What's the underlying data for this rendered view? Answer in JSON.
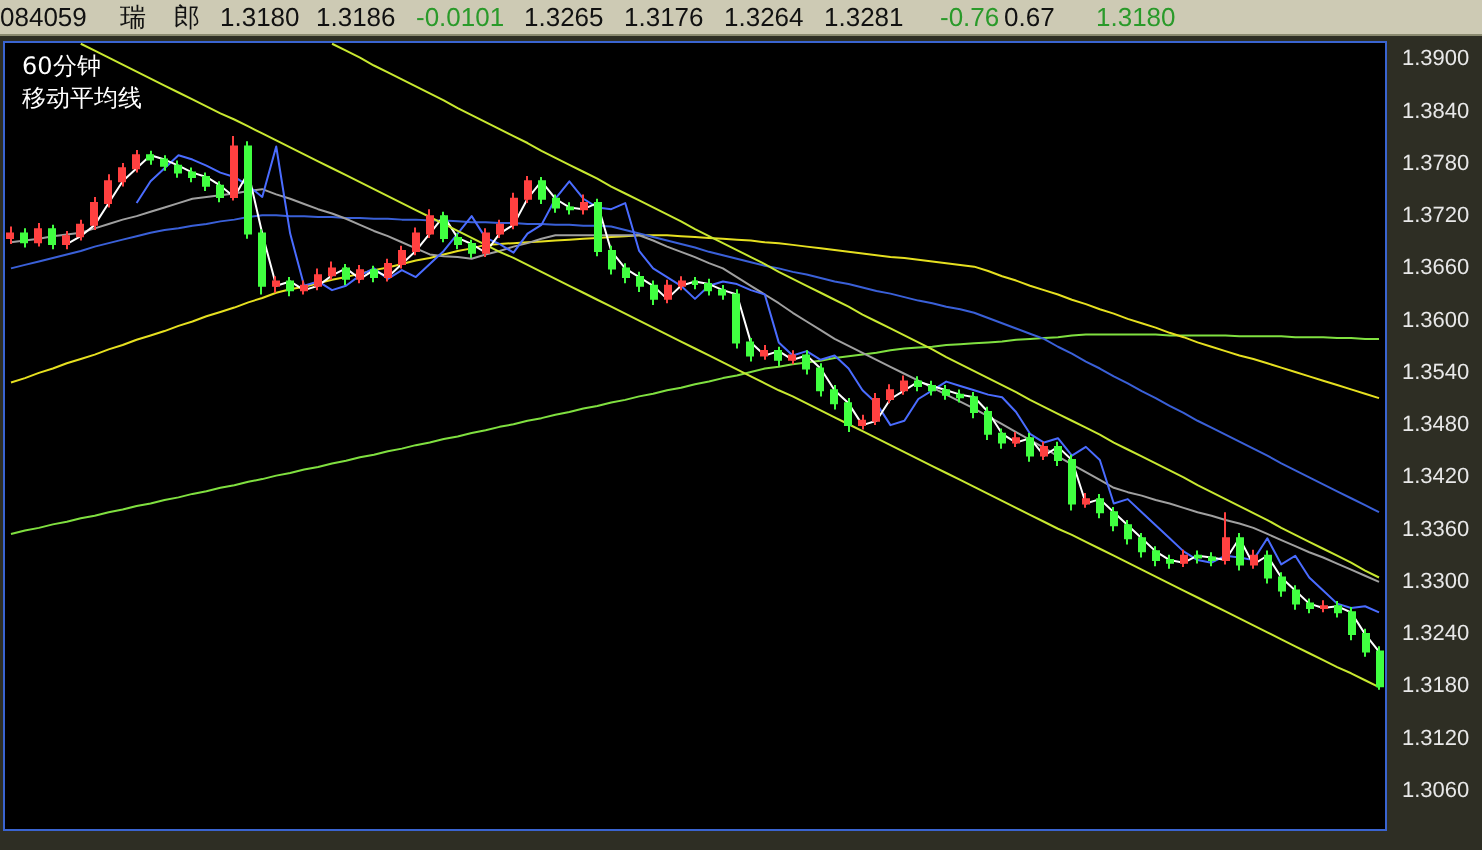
{
  "chart_data": {
    "type": "candlestick",
    "title": "60分钟",
    "subtitle": "移动平均线",
    "annotations": [
      "084059",
      "瑞",
      "郎",
      "1.3180",
      "1.3186",
      "-0.0101",
      "1.3265",
      "1.3176",
      "1.3264",
      "1.3281",
      "-0.76",
      "0.67",
      "1.3180"
    ],
    "categories": [
      null,
      null,
      null,
      null,
      null,
      null,
      null,
      null,
      null,
      null,
      null,
      null,
      null,
      null,
      null,
      null,
      null,
      null,
      null,
      null,
      null,
      null,
      null,
      null,
      null,
      null,
      null,
      null,
      null,
      null,
      null,
      null,
      null,
      null,
      null,
      null,
      null,
      null,
      null,
      null,
      null,
      null,
      null,
      null,
      null,
      null,
      null,
      null,
      null,
      null,
      null,
      null,
      null,
      null,
      null,
      null,
      null,
      null,
      null,
      null,
      null,
      null,
      null,
      null,
      null,
      null,
      null,
      null,
      null,
      null,
      null,
      null,
      null,
      null,
      null,
      null,
      null,
      null,
      null,
      null,
      null,
      null,
      null,
      null,
      null,
      null,
      null,
      null,
      null,
      null,
      null,
      null,
      null,
      null,
      null,
      null,
      null,
      null,
      null
    ],
    "ohlc": [
      [
        1.3695,
        1.3708,
        1.3688,
        1.37
      ],
      [
        1.37,
        1.3706,
        1.3684,
        1.369
      ],
      [
        1.369,
        1.3712,
        1.3685,
        1.3705
      ],
      [
        1.3705,
        1.371,
        1.3682,
        1.3688
      ],
      [
        1.3688,
        1.3703,
        1.3682,
        1.3697
      ],
      [
        1.3697,
        1.3716,
        1.3692,
        1.371
      ],
      [
        1.371,
        1.3742,
        1.3704,
        1.3735
      ],
      [
        1.3735,
        1.3768,
        1.373,
        1.376
      ],
      [
        1.376,
        1.3781,
        1.3754,
        1.3775
      ],
      [
        1.3775,
        1.3796,
        1.377,
        1.379
      ],
      [
        1.379,
        1.3795,
        1.3779,
        1.3785
      ],
      [
        1.3785,
        1.379,
        1.3772,
        1.3778
      ],
      [
        1.3778,
        1.3784,
        1.3764,
        1.377
      ],
      [
        1.377,
        1.3776,
        1.3759,
        1.3765
      ],
      [
        1.3765,
        1.377,
        1.3749,
        1.3755
      ],
      [
        1.3755,
        1.376,
        1.3736,
        1.3742
      ],
      [
        1.3742,
        1.3812,
        1.3738,
        1.38
      ],
      [
        1.38,
        1.3806,
        1.3694,
        1.37
      ],
      [
        1.37,
        1.3705,
        1.363,
        1.364
      ],
      [
        1.364,
        1.3651,
        1.3632,
        1.3645
      ],
      [
        1.3645,
        1.365,
        1.3628,
        1.3635
      ],
      [
        1.3635,
        1.3646,
        1.363,
        1.364
      ],
      [
        1.364,
        1.366,
        1.3635,
        1.3652
      ],
      [
        1.3652,
        1.3668,
        1.3647,
        1.366
      ],
      [
        1.366,
        1.3665,
        1.3641,
        1.3648
      ],
      [
        1.3648,
        1.3664,
        1.3643,
        1.3658
      ],
      [
        1.3658,
        1.3663,
        1.3644,
        1.365
      ],
      [
        1.365,
        1.3671,
        1.3645,
        1.3665
      ],
      [
        1.3665,
        1.3686,
        1.366,
        1.368
      ],
      [
        1.368,
        1.3707,
        1.3675,
        1.37
      ],
      [
        1.37,
        1.3728,
        1.3695,
        1.372
      ],
      [
        1.372,
        1.3725,
        1.369,
        1.3695
      ],
      [
        1.3695,
        1.37,
        1.3682,
        1.3688
      ],
      [
        1.3688,
        1.3693,
        1.3672,
        1.3678
      ],
      [
        1.3678,
        1.3706,
        1.3673,
        1.37
      ],
      [
        1.37,
        1.3716,
        1.3695,
        1.371
      ],
      [
        1.371,
        1.3747,
        1.3705,
        1.374
      ],
      [
        1.374,
        1.3766,
        1.3735,
        1.376
      ],
      [
        1.376,
        1.3765,
        1.3734,
        1.374
      ],
      [
        1.374,
        1.3745,
        1.3724,
        1.373
      ],
      [
        1.373,
        1.3736,
        1.3722,
        1.3728
      ],
      [
        1.3728,
        1.3745,
        1.3722,
        1.3735
      ],
      [
        1.3735,
        1.374,
        1.3674,
        1.368
      ],
      [
        1.368,
        1.3686,
        1.3653,
        1.366
      ],
      [
        1.366,
        1.3666,
        1.3643,
        1.365
      ],
      [
        1.365,
        1.3656,
        1.3633,
        1.364
      ],
      [
        1.364,
        1.3646,
        1.3618,
        1.3625
      ],
      [
        1.3625,
        1.3647,
        1.362,
        1.364
      ],
      [
        1.364,
        1.3651,
        1.3635,
        1.3645
      ],
      [
        1.3645,
        1.365,
        1.3636,
        1.3642
      ],
      [
        1.3642,
        1.3648,
        1.3629,
        1.3635
      ],
      [
        1.3635,
        1.3641,
        1.3624,
        1.363
      ],
      [
        1.363,
        1.3636,
        1.3568,
        1.3575
      ],
      [
        1.3575,
        1.358,
        1.3553,
        1.356
      ],
      [
        1.356,
        1.3572,
        1.3555,
        1.3565
      ],
      [
        1.3565,
        1.357,
        1.3548,
        1.3555
      ],
      [
        1.3555,
        1.3566,
        1.355,
        1.356
      ],
      [
        1.356,
        1.3566,
        1.3538,
        1.3545
      ],
      [
        1.3545,
        1.3551,
        1.3513,
        1.352
      ],
      [
        1.352,
        1.3526,
        1.3498,
        1.3505
      ],
      [
        1.3505,
        1.3511,
        1.3472,
        1.348
      ],
      [
        1.348,
        1.3492,
        1.3475,
        1.3485
      ],
      [
        1.3485,
        1.3517,
        1.348,
        1.351
      ],
      [
        1.351,
        1.3527,
        1.3505,
        1.352
      ],
      [
        1.352,
        1.3537,
        1.3515,
        1.353
      ],
      [
        1.353,
        1.3536,
        1.3519,
        1.3525
      ],
      [
        1.3525,
        1.3531,
        1.3514,
        1.352
      ],
      [
        1.352,
        1.3526,
        1.3509,
        1.3515
      ],
      [
        1.3515,
        1.3521,
        1.3506,
        1.3512
      ],
      [
        1.3512,
        1.3518,
        1.3488,
        1.3495
      ],
      [
        1.3495,
        1.3501,
        1.3463,
        1.347
      ],
      [
        1.347,
        1.3476,
        1.3453,
        1.346
      ],
      [
        1.346,
        1.3472,
        1.3455,
        1.3465
      ],
      [
        1.3465,
        1.3471,
        1.3438,
        1.3445
      ],
      [
        1.3445,
        1.3461,
        1.344,
        1.3455
      ],
      [
        1.3455,
        1.3461,
        1.3433,
        1.344
      ],
      [
        1.344,
        1.3446,
        1.3382,
        1.339
      ],
      [
        1.339,
        1.3402,
        1.3385,
        1.3395
      ],
      [
        1.3395,
        1.3401,
        1.3373,
        1.338
      ],
      [
        1.338,
        1.3386,
        1.3358,
        1.3365
      ],
      [
        1.3365,
        1.3371,
        1.3343,
        1.335
      ],
      [
        1.335,
        1.3356,
        1.3328,
        1.3335
      ],
      [
        1.3335,
        1.3341,
        1.3318,
        1.3325
      ],
      [
        1.3325,
        1.3331,
        1.3315,
        1.3322
      ],
      [
        1.3322,
        1.3337,
        1.3317,
        1.333
      ],
      [
        1.333,
        1.3336,
        1.3321,
        1.3328
      ],
      [
        1.3328,
        1.3334,
        1.3318,
        1.3325
      ],
      [
        1.3325,
        1.338,
        1.332,
        1.335
      ],
      [
        1.335,
        1.3356,
        1.3313,
        1.332
      ],
      [
        1.332,
        1.3337,
        1.3315,
        1.333
      ],
      [
        1.333,
        1.3336,
        1.3298,
        1.3305
      ],
      [
        1.3305,
        1.3311,
        1.3283,
        1.329
      ],
      [
        1.329,
        1.3296,
        1.3268,
        1.3275
      ],
      [
        1.3275,
        1.3281,
        1.3264,
        1.327
      ],
      [
        1.327,
        1.3279,
        1.3265,
        1.3272
      ],
      [
        1.3272,
        1.3278,
        1.3259,
        1.3265
      ],
      [
        1.3265,
        1.3271,
        1.3233,
        1.324
      ],
      [
        1.324,
        1.3246,
        1.3214,
        1.322
      ],
      [
        1.322,
        1.3226,
        1.3176,
        1.318
      ]
    ],
    "colors": [
      "#ff4040",
      "#40ff40",
      "#ff4040",
      "#40ff40",
      "#ff4040",
      "#ff4040",
      "#ff4040",
      "#ff4040",
      "#ff4040",
      "#ff4040",
      "#40ff40",
      "#40ff40",
      "#40ff40",
      "#40ff40",
      "#40ff40",
      "#40ff40",
      "#ff4040",
      "#40ff40",
      "#40ff40",
      "#ff4040",
      "#40ff40",
      "#ff4040",
      "#ff4040",
      "#ff4040",
      "#40ff40",
      "#ff4040",
      "#40ff40",
      "#ff4040",
      "#ff4040",
      "#ff4040",
      "#ff4040",
      "#40ff40",
      "#40ff40",
      "#40ff40",
      "#ff4040",
      "#ff4040",
      "#ff4040",
      "#ff4040",
      "#40ff40",
      "#40ff40",
      "#40ff40",
      "#ff4040",
      "#40ff40",
      "#40ff40",
      "#40ff40",
      "#40ff40",
      "#40ff40",
      "#ff4040",
      "#ff4040",
      "#40ff40",
      "#40ff40",
      "#40ff40",
      "#40ff40",
      "#40ff40",
      "#ff4040",
      "#40ff40",
      "#ff4040",
      "#40ff40",
      "#40ff40",
      "#40ff40",
      "#40ff40",
      "#ff4040",
      "#ff4040",
      "#ff4040",
      "#ff4040",
      "#40ff40",
      "#40ff40",
      "#40ff40",
      "#40ff40",
      "#40ff40",
      "#40ff40",
      "#40ff40",
      "#ff4040",
      "#40ff40",
      "#ff4040",
      "#40ff40",
      "#40ff40",
      "#ff4040",
      "#40ff40",
      "#40ff40",
      "#40ff40",
      "#40ff40",
      "#40ff40",
      "#40ff40",
      "#ff4040",
      "#40ff40",
      "#40ff40",
      "#ff4040",
      "#40ff40",
      "#ff4040",
      "#40ff40",
      "#40ff40",
      "#40ff40",
      "#40ff40",
      "#ff4040",
      "#40ff40",
      "#40ff40",
      "#40ff40",
      "#40ff40"
    ],
    "series": [
      {
        "type": "line",
        "color": "#80e040",
        "values": [
          1.3355,
          1.3359,
          1.3362,
          1.3366,
          1.3369,
          1.3373,
          1.3376,
          1.338,
          1.3383,
          1.3387,
          1.339,
          1.3394,
          1.3397,
          1.3401,
          1.3404,
          1.3408,
          1.3411,
          1.3415,
          1.3418,
          1.3422,
          1.3425,
          1.3429,
          1.3432,
          1.3436,
          1.3439,
          1.3443,
          1.3446,
          1.345,
          1.3453,
          1.3457,
          1.346,
          1.3464,
          1.3467,
          1.3471,
          1.3474,
          1.3478,
          1.3481,
          1.3485,
          1.3488,
          1.3492,
          1.3495,
          1.3499,
          1.3502,
          1.3506,
          1.3509,
          1.3513,
          1.3516,
          1.352,
          1.3523,
          1.3527,
          1.353,
          1.3534,
          1.3537,
          1.3541,
          1.3545,
          1.3547,
          1.355,
          1.3552,
          1.3554,
          1.3557,
          1.3559,
          1.3561,
          1.3563,
          1.3566,
          1.3568,
          1.3569,
          1.357,
          1.3572,
          1.3573,
          1.3574,
          1.3575,
          1.3576,
          1.3578,
          1.3579,
          1.358,
          1.3581,
          1.3583,
          1.3584,
          1.3584,
          1.3584,
          1.3584,
          1.3584,
          1.3584,
          1.3583,
          1.3583,
          1.3583,
          1.3583,
          1.3583,
          1.3582,
          1.3582,
          1.3582,
          1.3582,
          1.3581,
          1.3581,
          1.3581,
          1.358,
          1.358,
          1.3579,
          1.3579
        ]
      },
      {
        "type": "line",
        "color": "#e6e020",
        "values": [
          1.3529,
          1.3534,
          1.354,
          1.3545,
          1.3551,
          1.3556,
          1.3561,
          1.3567,
          1.3572,
          1.3578,
          1.3583,
          1.3588,
          1.3594,
          1.3599,
          1.3605,
          1.361,
          1.3615,
          1.3621,
          1.3626,
          1.3632,
          1.3636,
          1.3639,
          1.3643,
          1.3647,
          1.365,
          1.3654,
          1.3658,
          1.3661,
          1.3665,
          1.3669,
          1.3672,
          1.3676,
          1.368,
          1.3683,
          1.3687,
          1.3688,
          1.3689,
          1.369,
          1.3691,
          1.3692,
          1.3693,
          1.3694,
          1.3695,
          1.3696,
          1.3697,
          1.3698,
          1.3698,
          1.3698,
          1.3697,
          1.3696,
          1.3695,
          1.3694,
          1.3693,
          1.3692,
          1.369,
          1.3689,
          1.3687,
          1.3685,
          1.3683,
          1.3681,
          1.3679,
          1.3677,
          1.3675,
          1.3673,
          1.3672,
          1.367,
          1.3668,
          1.3666,
          1.3664,
          1.3662,
          1.3657,
          1.3651,
          1.3646,
          1.364,
          1.3635,
          1.363,
          1.3624,
          1.3619,
          1.3613,
          1.3608,
          1.3602,
          1.3597,
          1.3592,
          1.3586,
          1.3581,
          1.3575,
          1.357,
          1.3565,
          1.356,
          1.3556,
          1.3551,
          1.3546,
          1.3541,
          1.3536,
          1.3531,
          1.3526,
          1.3521,
          1.3516,
          1.3511
        ]
      },
      {
        "type": "line",
        "color": "#3a60d8",
        "values": [
          1.366,
          1.3664,
          1.3668,
          1.3672,
          1.3676,
          1.368,
          1.3685,
          1.3689,
          1.3693,
          1.3697,
          1.3701,
          1.3704,
          1.3706,
          1.3709,
          1.3711,
          1.3714,
          1.3716,
          1.3719,
          1.3721,
          1.3721,
          1.372,
          1.372,
          1.3719,
          1.3719,
          1.3718,
          1.3718,
          1.3717,
          1.3717,
          1.3716,
          1.3716,
          1.3715,
          1.3715,
          1.3714,
          1.3713,
          1.3713,
          1.3712,
          1.3712,
          1.3711,
          1.3711,
          1.371,
          1.371,
          1.3709,
          1.3709,
          1.3708,
          1.3704,
          1.37,
          1.3696,
          1.3692,
          1.3688,
          1.3684,
          1.3679,
          1.3675,
          1.3671,
          1.3667,
          1.3663,
          1.366,
          1.3656,
          1.3653,
          1.3649,
          1.3645,
          1.3642,
          1.3638,
          1.3634,
          1.3631,
          1.3627,
          1.3623,
          1.362,
          1.3616,
          1.3613,
          1.3609,
          1.3603,
          1.3597,
          1.3591,
          1.3585,
          1.3579,
          1.357,
          1.3562,
          1.3553,
          1.3545,
          1.3536,
          1.3528,
          1.3519,
          1.3511,
          1.3502,
          1.3494,
          1.3485,
          1.3477,
          1.3469,
          1.3461,
          1.3453,
          1.3445,
          1.3436,
          1.3428,
          1.342,
          1.3412,
          1.3404,
          1.3396,
          1.3388,
          1.338
        ]
      },
      {
        "type": "line",
        "color": "#a0a0a0",
        "values": [
          1.369,
          1.3692,
          1.3694,
          1.3697,
          1.3699,
          1.3701,
          1.3706,
          1.3711,
          1.3716,
          1.372,
          1.3725,
          1.373,
          1.3735,
          1.374,
          1.3742,
          1.3744,
          1.3746,
          1.3749,
          1.3751,
          1.3745,
          1.374,
          1.3734,
          1.3728,
          1.3723,
          1.3717,
          1.371,
          1.3703,
          1.3697,
          1.369,
          1.3683,
          1.3676,
          1.3674,
          1.3673,
          1.3671,
          1.3676,
          1.368,
          1.3685,
          1.3689,
          1.3694,
          1.3698,
          1.3698,
          1.3698,
          1.3698,
          1.3698,
          1.3698,
          1.3698,
          1.3692,
          1.3685,
          1.3679,
          1.3673,
          1.3666,
          1.366,
          1.365,
          1.364,
          1.363,
          1.362,
          1.3609,
          1.3599,
          1.3589,
          1.3579,
          1.3571,
          1.3563,
          1.3555,
          1.3547,
          1.3539,
          1.3531,
          1.3523,
          1.3515,
          1.3507,
          1.3499,
          1.349,
          1.3481,
          1.3472,
          1.3463,
          1.3454,
          1.3444,
          1.3435,
          1.3426,
          1.3417,
          1.3408,
          1.3403,
          1.3399,
          1.3394,
          1.339,
          1.3385,
          1.338,
          1.3376,
          1.3371,
          1.3367,
          1.3362,
          1.3355,
          1.3348,
          1.3341,
          1.3334,
          1.3328,
          1.3321,
          1.3314,
          1.3307,
          1.33
        ]
      },
      {
        "type": "line",
        "color": "#4a6cff",
        "values": [
          null,
          null,
          null,
          null,
          null,
          null,
          null,
          null,
          null,
          1.3735,
          1.376,
          1.3775,
          1.379,
          1.3785,
          1.3778,
          1.377,
          1.3765,
          1.3755,
          1.3742,
          1.38,
          1.37,
          1.364,
          1.3645,
          1.3635,
          1.364,
          1.3652,
          1.366,
          1.3648,
          1.3658,
          1.365,
          1.3665,
          1.368,
          1.37,
          1.372,
          1.3695,
          1.3688,
          1.3678,
          1.37,
          1.371,
          1.374,
          1.376,
          1.374,
          1.373,
          1.3728,
          1.3735,
          1.368,
          1.366,
          1.365,
          1.364,
          1.3625,
          1.364,
          1.3645,
          1.3642,
          1.3635,
          1.363,
          1.3575,
          1.356,
          1.3565,
          1.3555,
          1.356,
          1.3545,
          1.352,
          1.3505,
          1.348,
          1.3485,
          1.351,
          1.352,
          1.353,
          1.3525,
          1.352,
          1.3515,
          1.3512,
          1.3495,
          1.347,
          1.346,
          1.3465,
          1.3445,
          1.3455,
          1.344,
          1.339,
          1.3395,
          1.338,
          1.3365,
          1.335,
          1.3335,
          1.3325,
          1.3322,
          1.333,
          1.3328,
          1.3325,
          1.335,
          1.332,
          1.333,
          1.3305,
          1.329,
          1.3275,
          1.327,
          1.3272,
          1.3265
        ]
      },
      {
        "type": "line",
        "color": "#ffffff",
        "values": [
          null,
          null,
          null,
          null,
          1.3688,
          1.3697,
          1.371,
          1.3735,
          1.376,
          1.3775,
          1.379,
          1.3785,
          1.3778,
          1.377,
          1.3765,
          1.3755,
          1.3742,
          1.377,
          1.37,
          1.364,
          1.3645,
          1.3635,
          1.364,
          1.3652,
          1.366,
          1.3648,
          1.3658,
          1.365,
          1.3665,
          1.368,
          1.37,
          1.372,
          1.3695,
          1.3688,
          1.3678,
          1.37,
          1.371,
          1.374,
          1.376,
          1.374,
          1.373,
          1.3728,
          1.3735,
          1.368,
          1.366,
          1.365,
          1.364,
          1.3625,
          1.364,
          1.3645,
          1.3642,
          1.3635,
          1.363,
          1.3575,
          1.356,
          1.3565,
          1.3555,
          1.356,
          1.3545,
          1.352,
          1.3505,
          1.348,
          1.3485,
          1.351,
          1.352,
          1.353,
          1.3525,
          1.352,
          1.3515,
          1.3512,
          1.3495,
          1.347,
          1.346,
          1.3465,
          1.3445,
          1.3455,
          1.344,
          1.339,
          1.3395,
          1.338,
          1.3365,
          1.335,
          1.3335,
          1.3325,
          1.3322,
          1.333,
          1.3328,
          1.3325,
          1.335,
          1.332,
          1.333,
          1.3305,
          1.329,
          1.3275,
          1.327,
          1.3272,
          1.3265,
          1.324,
          1.322
        ]
      },
      {
        "type": "line",
        "color": "#c8e830",
        "values": [
          null,
          null,
          null,
          null,
          null,
          1.3918,
          1.391,
          1.3902,
          1.3894,
          1.3886,
          1.3878,
          1.387,
          1.3862,
          1.3854,
          1.3846,
          1.3838,
          1.3831,
          1.3823,
          1.3815,
          1.3807,
          1.3799,
          1.3791,
          1.3783,
          1.3775,
          1.3767,
          1.3759,
          1.3751,
          1.3743,
          1.3735,
          1.3727,
          1.3719,
          1.3711,
          1.3703,
          1.3695,
          1.3687,
          1.3679,
          1.3672,
          1.3664,
          1.3656,
          1.3648,
          1.364,
          1.3632,
          1.3624,
          1.3616,
          1.3608,
          1.36,
          1.3592,
          1.3584,
          1.3576,
          1.3568,
          1.356,
          1.3552,
          1.3544,
          1.3536,
          1.3528,
          1.352,
          1.3513,
          1.3505,
          1.3497,
          1.3489,
          1.3481,
          1.3473,
          1.3465,
          1.3457,
          1.3449,
          1.3441,
          1.3433,
          1.3425,
          1.3417,
          1.3409,
          1.3401,
          1.3393,
          1.3385,
          1.3377,
          1.3369,
          1.3361,
          1.3354,
          1.3346,
          1.3338,
          1.333,
          1.3322,
          1.3314,
          1.3306,
          1.3298,
          1.329,
          1.3282,
          1.3274,
          1.3266,
          1.3258,
          1.325,
          1.3242,
          1.3234,
          1.3226,
          1.3218,
          1.321,
          1.3202,
          1.3195,
          1.3187,
          1.3179
        ]
      },
      {
        "type": "line",
        "color": "#c8e830",
        "values": [
          null,
          null,
          null,
          null,
          null,
          null,
          null,
          null,
          null,
          null,
          null,
          null,
          null,
          null,
          null,
          null,
          null,
          null,
          null,
          null,
          null,
          null,
          null,
          1.3918,
          1.391,
          1.3902,
          1.3893,
          1.3885,
          1.3877,
          1.3869,
          1.3861,
          1.3853,
          1.3844,
          1.3836,
          1.3828,
          1.382,
          1.3812,
          1.3804,
          1.3795,
          1.3787,
          1.3779,
          1.3771,
          1.3763,
          1.3754,
          1.3746,
          1.3738,
          1.373,
          1.3722,
          1.3714,
          1.3705,
          1.3697,
          1.3689,
          1.3681,
          1.3673,
          1.3665,
          1.3656,
          1.3648,
          1.364,
          1.3632,
          1.3624,
          1.3616,
          1.3607,
          1.3599,
          1.3591,
          1.3583,
          1.3575,
          1.3567,
          1.3558,
          1.355,
          1.3542,
          1.3534,
          1.3526,
          1.3518,
          1.3509,
          1.3501,
          1.3493,
          1.3485,
          1.3477,
          1.3469,
          1.346,
          1.3452,
          1.3444,
          1.3436,
          1.3428,
          1.342,
          1.3411,
          1.3403,
          1.3395,
          1.3387,
          1.3379,
          1.3371,
          1.3362,
          1.3354,
          1.3346,
          1.3338,
          1.333,
          1.3322,
          1.3313,
          1.3305
        ]
      }
    ],
    "ylim": [
      1.3015,
      1.392
    ],
    "yticks": [
      {
        "value": 1.306,
        "label": "1.3060"
      },
      {
        "value": 1.312,
        "label": "1.3120"
      },
      {
        "value": 1.318,
        "label": "1.3180"
      },
      {
        "value": 1.324,
        "label": "1.3240"
      },
      {
        "value": 1.33,
        "label": "1.3300"
      },
      {
        "value": 1.336,
        "label": "1.3360"
      },
      {
        "value": 1.342,
        "label": "1.3420"
      },
      {
        "value": 1.348,
        "label": "1.3480"
      },
      {
        "value": 1.354,
        "label": "1.3540"
      },
      {
        "value": 1.36,
        "label": "1.3600"
      },
      {
        "value": 1.366,
        "label": "1.3660"
      },
      {
        "value": 1.372,
        "label": "1.3720"
      },
      {
        "value": 1.378,
        "label": "1.3780"
      },
      {
        "value": 1.384,
        "label": "1.3840"
      },
      {
        "value": 1.39,
        "label": "1.3900"
      }
    ],
    "tick_labels": "y"
  }
}
